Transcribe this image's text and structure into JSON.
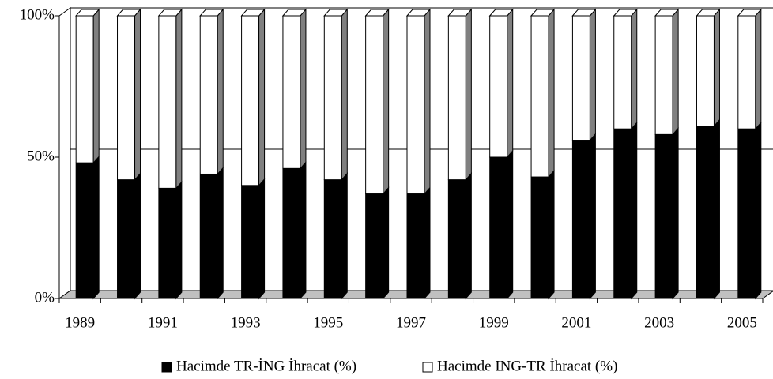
{
  "chart_data": {
    "type": "bar3d_stacked",
    "categories": [
      "1989",
      null,
      "1991",
      null,
      "1993",
      null,
      "1995",
      null,
      "1997",
      null,
      "1999",
      null,
      "2001",
      null,
      "2003",
      null,
      "2005"
    ],
    "series": [
      {
        "name": "Hacimde TR-İNG İhracat (%)",
        "color": "#000000",
        "values": [
          48,
          42,
          39,
          44,
          40,
          46,
          42,
          37,
          37,
          42,
          50,
          43,
          56,
          60,
          58,
          61,
          60
        ]
      },
      {
        "name": "Hacimde ING-TR İhracat (%)",
        "color": "#ffffff",
        "values": [
          52,
          58,
          61,
          56,
          60,
          54,
          58,
          63,
          63,
          58,
          50,
          57,
          44,
          40,
          42,
          39,
          40
        ]
      }
    ],
    "ylim": [
      0,
      100
    ],
    "yticks": [
      {
        "value": 0,
        "label": "0%"
      },
      {
        "value": 50,
        "label": "50%"
      },
      {
        "value": 100,
        "label": "100%"
      }
    ],
    "grid": true,
    "legend": "bottom"
  }
}
